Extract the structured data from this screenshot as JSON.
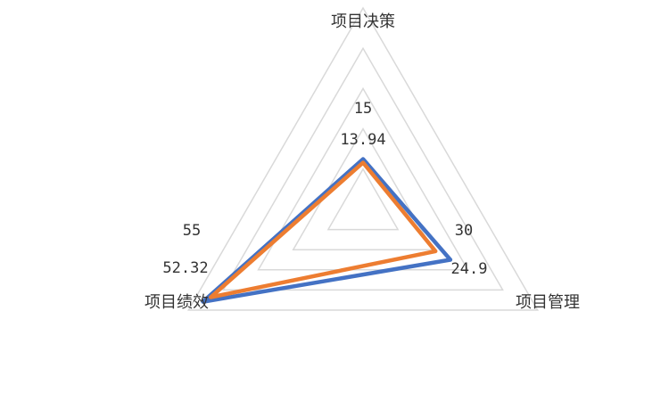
{
  "chart_data": {
    "type": "radar",
    "categories": [
      "项目决策",
      "项目管理",
      "项目绩效"
    ],
    "series": [
      {
        "values": [
          15,
          30,
          55
        ],
        "color": "#4472C4"
      },
      {
        "values": [
          13.94,
          24.9,
          52.32
        ],
        "color": "#ED7D31"
      }
    ],
    "data_labels": [
      [
        "15",
        "30",
        "55"
      ],
      [
        "13.94",
        "24.9",
        "52.32"
      ]
    ],
    "range": [
      0,
      60
    ],
    "grid_levels": 5,
    "grid": true,
    "legend": "none"
  }
}
